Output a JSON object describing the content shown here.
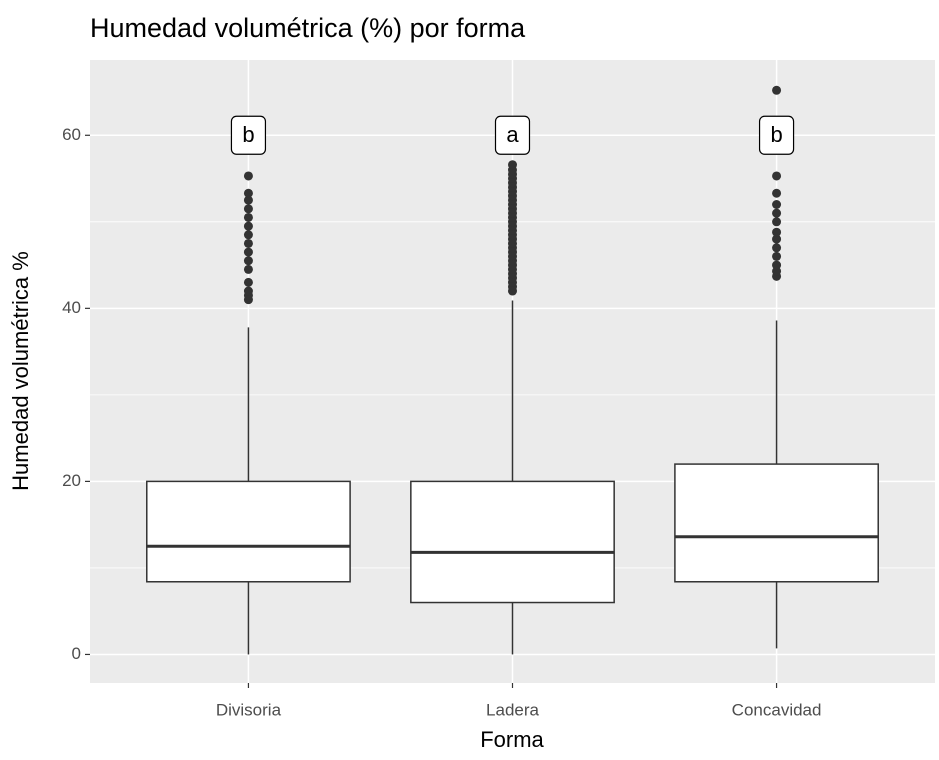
{
  "chart_data": {
    "type": "boxplot",
    "title": "Humedad volumétrica (%) por forma",
    "x_label": "Forma",
    "y_label": "Humedad volumétrica %",
    "categories": [
      "Divisoria",
      "Ladera",
      "Concavidad"
    ],
    "boxes": [
      {
        "min": 0,
        "q1": 8.4,
        "median": 12.5,
        "q3": 20.0,
        "max": 37.8,
        "outliers": [
          41,
          41.5,
          42,
          43,
          44.5,
          45.5,
          46.5,
          47.5,
          48.5,
          49.5,
          50.5,
          51.5,
          52.5,
          53.3,
          55.3
        ]
      },
      {
        "min": 0,
        "q1": 6.0,
        "median": 11.8,
        "q3": 20.0,
        "max": 40.9,
        "outliers": [
          42,
          42.5,
          43,
          43.5,
          44,
          44.5,
          45,
          45.5,
          46,
          46.5,
          47,
          47.5,
          48,
          48.5,
          49,
          49.5,
          50,
          50.5,
          51,
          51.5,
          52,
          52.5,
          53,
          53.5,
          54,
          54.5,
          55,
          55.5,
          56,
          56.6
        ]
      },
      {
        "min": 0.7,
        "q1": 8.4,
        "median": 13.6,
        "q3": 22.0,
        "max": 38.6,
        "outliers": [
          43.7,
          44.3,
          45,
          46,
          47,
          48,
          48.8,
          50,
          51,
          52,
          53.3,
          55.3,
          65.2
        ]
      }
    ],
    "letters": [
      "b",
      "a",
      "b"
    ],
    "letter_y": 60,
    "ylim": [
      -3.3,
      68.7
    ],
    "yticks": [
      0,
      20,
      40,
      60
    ],
    "yminor": [
      10,
      30,
      50
    ],
    "grid": true,
    "panel_color": "#ebebeb",
    "box_color": "#333333"
  }
}
